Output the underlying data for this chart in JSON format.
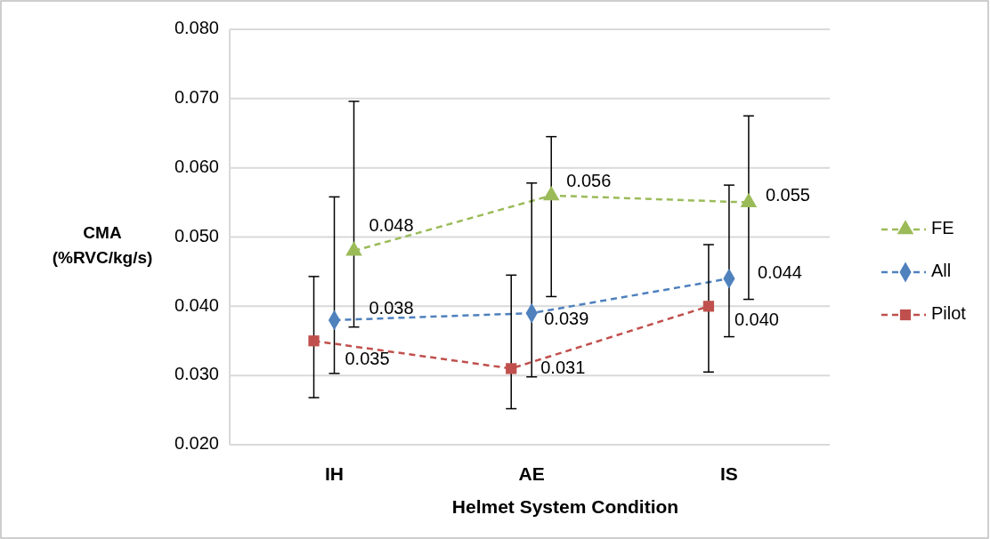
{
  "chart_data": {
    "type": "line",
    "xlabel": "Helmet System Condition",
    "ylabel": "CMA\n(%RVC/kg/s)",
    "categories": [
      "IH",
      "AE",
      "IS"
    ],
    "ylim": [
      0.02,
      0.08
    ],
    "yticks": [
      {
        "value": 0.02,
        "label": "0.020"
      },
      {
        "value": 0.03,
        "label": "0.030"
      },
      {
        "value": 0.04,
        "label": "0.040"
      },
      {
        "value": 0.05,
        "label": "0.050"
      },
      {
        "value": 0.06,
        "label": "0.060"
      },
      {
        "value": 0.07,
        "label": "0.070"
      },
      {
        "value": 0.08,
        "label": "0.080"
      }
    ],
    "grid": "y",
    "legend": "right",
    "line_style": "dashed",
    "series": [
      {
        "name": "FE",
        "color": "#9bbb59",
        "marker": "triangle",
        "values": [
          0.048,
          0.056,
          0.055
        ],
        "value_labels": [
          "0.048",
          "0.056",
          "0.055"
        ],
        "errors": [
          [
            0.037,
            0.0696
          ],
          [
            0.0414,
            0.0645
          ],
          [
            0.041,
            0.0675
          ]
        ]
      },
      {
        "name": "All",
        "color": "#4f81bd",
        "marker": "diamond",
        "values": [
          0.038,
          0.039,
          0.044
        ],
        "value_labels": [
          "0.038",
          "0.039",
          "0.044"
        ],
        "errors": [
          [
            0.0303,
            0.0558
          ],
          [
            0.0298,
            0.0578
          ],
          [
            0.0356,
            0.0575
          ]
        ]
      },
      {
        "name": "Pilot",
        "color": "#c0504d",
        "marker": "square",
        "values": [
          0.035,
          0.031,
          0.04
        ],
        "value_labels": [
          "0.035",
          "0.031",
          "0.040"
        ],
        "errors": [
          [
            0.0268,
            0.0443
          ],
          [
            0.0252,
            0.0445
          ],
          [
            0.0305,
            0.0489
          ]
        ]
      }
    ]
  }
}
